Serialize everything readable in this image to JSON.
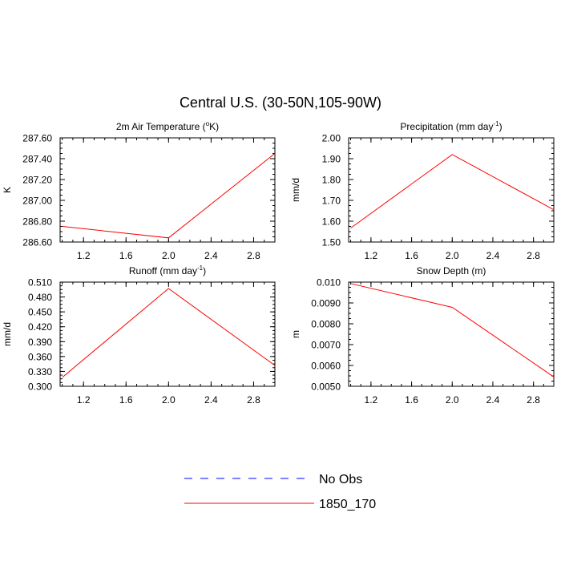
{
  "figure": {
    "title": "Central U.S. (30-50N,105-90W)"
  },
  "legend": {
    "entries": [
      {
        "label": "No Obs",
        "color": "#0000ff",
        "style": "dashed"
      },
      {
        "label": "1850_170",
        "color": "#ff0000",
        "style": "solid"
      }
    ]
  },
  "chart_data": [
    {
      "type": "line",
      "title": "2m Air Temperature (°K)",
      "title_parts": [
        "2m Air Temperature (",
        "o",
        "K)"
      ],
      "ylabel": "K",
      "xlim": [
        0.98,
        3.0
      ],
      "ylim": [
        286.6,
        287.6
      ],
      "xticks": [
        1.2,
        1.6,
        2.0,
        2.4,
        2.8
      ],
      "xticklabels": [
        "1.2",
        "1.6",
        "2.0",
        "2.4",
        "2.8"
      ],
      "yticks": [
        286.6,
        286.8,
        287.0,
        287.2,
        287.4,
        287.6
      ],
      "yticklabels": [
        "286.60",
        "286.80",
        "287.00",
        "287.20",
        "287.40",
        "287.60"
      ],
      "series": [
        {
          "name": "1850_170",
          "color": "#ff0000",
          "x": [
            1,
            2,
            3
          ],
          "y": [
            286.75,
            286.64,
            287.45
          ]
        }
      ]
    },
    {
      "type": "line",
      "title": "Precipitation (mm day-1)",
      "title_parts": [
        "Precipitation (mm day",
        "-1",
        ")"
      ],
      "ylabel": "mm/d",
      "xlim": [
        0.98,
        3.0
      ],
      "ylim": [
        1.5,
        2.0
      ],
      "xticks": [
        1.2,
        1.6,
        2.0,
        2.4,
        2.8
      ],
      "xticklabels": [
        "1.2",
        "1.6",
        "2.0",
        "2.4",
        "2.8"
      ],
      "yticks": [
        1.5,
        1.6,
        1.7,
        1.8,
        1.9,
        2.0
      ],
      "yticklabels": [
        "1.50",
        "1.60",
        "1.70",
        "1.80",
        "1.90",
        "2.00"
      ],
      "series": [
        {
          "name": "1850_170",
          "color": "#ff0000",
          "x": [
            1,
            2,
            3
          ],
          "y": [
            1.567,
            1.92,
            1.655
          ]
        }
      ]
    },
    {
      "type": "line",
      "title": "Runoff (mm day-1)",
      "title_parts": [
        "Runoff (mm day",
        "-1",
        ")"
      ],
      "ylabel": "mm/d",
      "xlim": [
        0.98,
        3.0
      ],
      "ylim": [
        0.3,
        0.51
      ],
      "xticks": [
        1.2,
        1.6,
        2.0,
        2.4,
        2.8
      ],
      "xticklabels": [
        "1.2",
        "1.6",
        "2.0",
        "2.4",
        "2.8"
      ],
      "yticks": [
        0.3,
        0.33,
        0.36,
        0.39,
        0.42,
        0.45,
        0.48,
        0.51
      ],
      "yticklabels": [
        "0.300",
        "0.330",
        "0.360",
        "0.390",
        "0.420",
        "0.450",
        "0.480",
        "0.510"
      ],
      "series": [
        {
          "name": "1850_170",
          "color": "#ff0000",
          "x": [
            1,
            2,
            3
          ],
          "y": [
            0.318,
            0.497,
            0.342
          ]
        }
      ]
    },
    {
      "type": "line",
      "title": "Snow Depth (m)",
      "title_parts": [
        "Snow Depth (m)",
        "",
        ""
      ],
      "ylabel": "m",
      "xlim": [
        0.98,
        3.0
      ],
      "ylim": [
        0.005,
        0.01
      ],
      "xticks": [
        1.2,
        1.6,
        2.0,
        2.4,
        2.8
      ],
      "xticklabels": [
        "1.2",
        "1.6",
        "2.0",
        "2.4",
        "2.8"
      ],
      "yticks": [
        0.005,
        0.006,
        0.007,
        0.008,
        0.009,
        0.01
      ],
      "yticklabels": [
        "0.0050",
        "0.0060",
        "0.0070",
        "0.0080",
        "0.0090",
        "0.010"
      ],
      "series": [
        {
          "name": "1850_170",
          "color": "#ff0000",
          "x": [
            1,
            2,
            3
          ],
          "y": [
            0.00993,
            0.00879,
            0.00545
          ]
        }
      ]
    }
  ]
}
